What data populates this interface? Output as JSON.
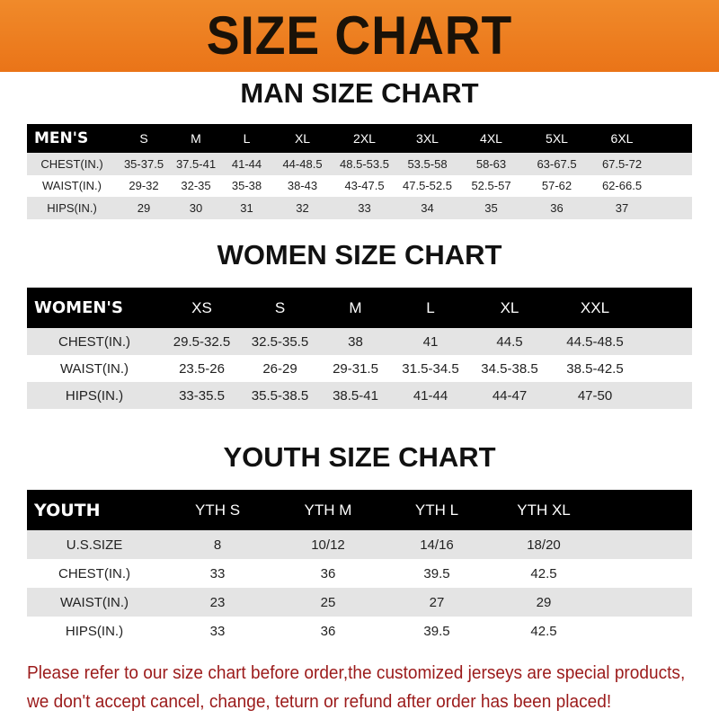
{
  "title": "SIZE CHART",
  "colors": {
    "banner": "#ea7418",
    "header_row": "#000000",
    "stripe": "#e4e4e4",
    "note": "#9b1a1a"
  },
  "men": {
    "title": "MAN SIZE CHART",
    "header_label": "MEN'S",
    "sizes": [
      "S",
      "M",
      "L",
      "XL",
      "2XL",
      "3XL",
      "4XL",
      "5XL",
      "6XL"
    ],
    "rows": [
      {
        "label": "CHEST(IN.)",
        "values": [
          "35-37.5",
          "37.5-41",
          "41-44",
          "44-48.5",
          "48.5-53.5",
          "53.5-58",
          "58-63",
          "63-67.5",
          "67.5-72"
        ]
      },
      {
        "label": "WAIST(IN.)",
        "values": [
          "29-32",
          "32-35",
          "35-38",
          "38-43",
          "43-47.5",
          "47.5-52.5",
          "52.5-57",
          "57-62",
          "62-66.5"
        ]
      },
      {
        "label": "HIPS(IN.)",
        "values": [
          "29",
          "30",
          "31",
          "32",
          "33",
          "34",
          "35",
          "36",
          "37"
        ]
      }
    ]
  },
  "women": {
    "title": "WOMEN SIZE CHART",
    "header_label": "WOMEN'S",
    "sizes": [
      "XS",
      "S",
      "M",
      "L",
      "XL",
      "XXL"
    ],
    "rows": [
      {
        "label": "CHEST(IN.)",
        "values": [
          "29.5-32.5",
          "32.5-35.5",
          "38",
          "41",
          "44.5",
          "44.5-48.5"
        ]
      },
      {
        "label": "WAIST(IN.)",
        "values": [
          "23.5-26",
          "26-29",
          "29-31.5",
          "31.5-34.5",
          "34.5-38.5",
          "38.5-42.5"
        ]
      },
      {
        "label": "HIPS(IN.)",
        "values": [
          "33-35.5",
          "35.5-38.5",
          "38.5-41",
          "41-44",
          "44-47",
          "47-50"
        ]
      }
    ]
  },
  "youth": {
    "title": "YOUTH SIZE CHART",
    "header_label": "YOUTH",
    "sizes": [
      "YTH S",
      "YTH M",
      "YTH L",
      "YTH XL"
    ],
    "rows": [
      {
        "label": "U.S.SIZE",
        "values": [
          "8",
          "10/12",
          "14/16",
          "18/20"
        ]
      },
      {
        "label": "CHEST(IN.)",
        "values": [
          "33",
          "36",
          "39.5",
          "42.5"
        ]
      },
      {
        "label": "WAIST(IN.)",
        "values": [
          "23",
          "25",
          "27",
          "29"
        ]
      },
      {
        "label": "HIPS(IN.)",
        "values": [
          "33",
          "36",
          "39.5",
          "42.5"
        ]
      }
    ]
  },
  "note": {
    "line1": "Please refer to our size chart before order,the customized jerseys are special products,",
    "line2": "we don't accept cancel, change, teturn or refund after order has been placed!"
  }
}
